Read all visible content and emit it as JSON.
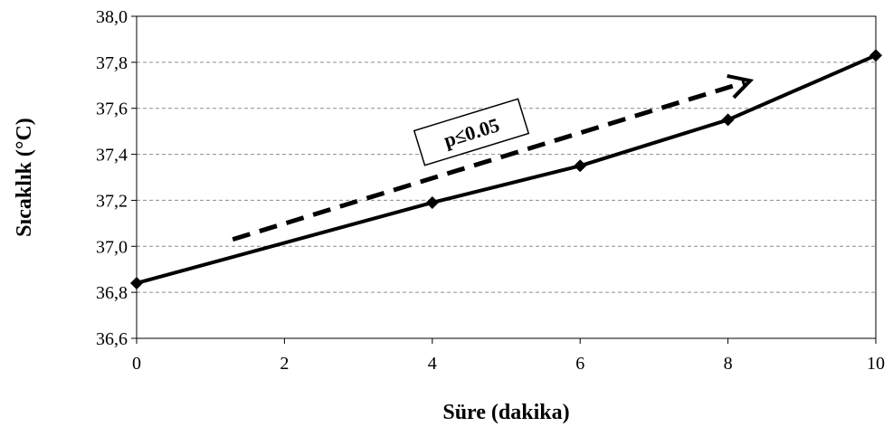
{
  "chart_data": {
    "type": "line",
    "title": "",
    "xlabel": "Süre (dakika)",
    "ylabel": "Sıcaklık (°C)",
    "x": [
      0,
      4,
      6,
      8,
      10
    ],
    "series": [
      {
        "values": [
          36.84,
          37.19,
          37.35,
          37.55,
          37.83
        ]
      }
    ],
    "xlim": [
      0,
      10
    ],
    "ylim": [
      36.6,
      38.0
    ],
    "xticks": [
      0,
      2,
      4,
      6,
      8,
      10
    ],
    "yticks": [
      36.6,
      36.8,
      37.0,
      37.2,
      37.4,
      37.6,
      37.8,
      38.0
    ],
    "xtick_labels": [
      "0",
      "2",
      "4",
      "6",
      "8",
      "10"
    ],
    "ytick_labels": [
      "36,6",
      "36,8",
      "37,0",
      "37,2",
      "37,4",
      "37,6",
      "37,8",
      "38,0"
    ],
    "grid": "horizontal-dashed",
    "line_color": "#000000",
    "marker": "diamond",
    "annotation": {
      "text": "p≤0.05",
      "arrow_style": "dashed",
      "arrow_from": [
        1.3,
        37.03
      ],
      "arrow_to": [
        8.3,
        37.72
      ]
    }
  }
}
